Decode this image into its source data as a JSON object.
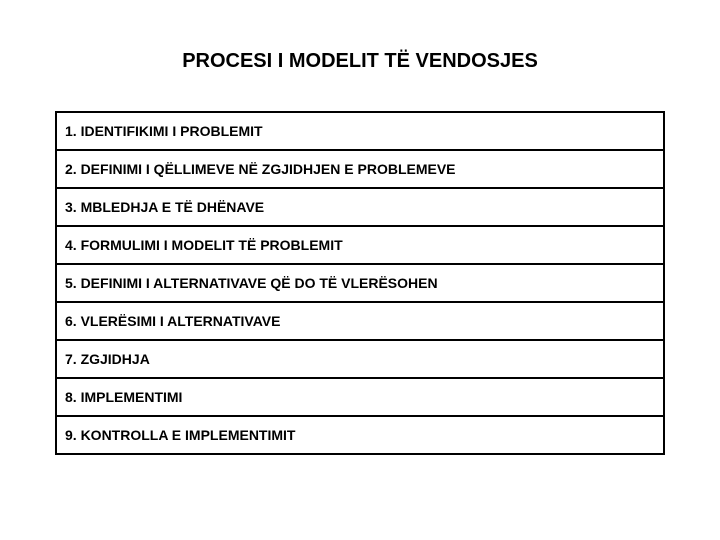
{
  "title": "PROCESI I MODELIT TË VENDOSJES",
  "steps": [
    {
      "label": "1. IDENTIFIKIMI I PROBLEMIT"
    },
    {
      "label": "2. DEFINIMI I QËLLIMEVE NË ZGJIDHJEN E PROBLEMEVE"
    },
    {
      "label": "3. MBLEDHJA E TË DHËNAVE"
    },
    {
      "label": "4. FORMULIMI I MODELIT TË PROBLEMIT"
    },
    {
      "label": "5. DEFINIMI I ALTERNATIVAVE QË DO TË VLERËSOHEN"
    },
    {
      "label": "6. VLERËSIMI I ALTERNATIVAVE"
    },
    {
      "label": "7. ZGJIDHJA"
    },
    {
      "label": "8. IMPLEMENTIMI"
    },
    {
      "label": "9. KONTROLLA E IMPLEMENTIMIT"
    }
  ],
  "colors": {
    "background": "#ffffff",
    "text": "#000000",
    "border": "#000000"
  },
  "typography": {
    "title_fontsize": 20,
    "step_fontsize": 14,
    "font_weight": "bold"
  }
}
